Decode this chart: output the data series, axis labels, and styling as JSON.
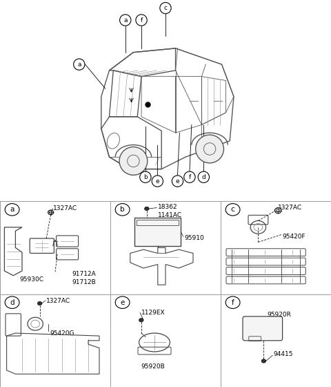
{
  "bg_color": "#ffffff",
  "line_color": "#444444",
  "light_color": "#888888",
  "panel_border_color": "#999999",
  "panels": {
    "a": {
      "label": "a",
      "parts": [
        "1327AC",
        "95930C",
        "91712A\n91712B"
      ]
    },
    "b": {
      "label": "b",
      "parts": [
        "18362\n1141AC",
        "95910"
      ]
    },
    "c": {
      "label": "c",
      "parts": [
        "1327AC",
        "95420F"
      ]
    },
    "d": {
      "label": "d",
      "parts": [
        "1327AC",
        "95420G"
      ]
    },
    "e": {
      "label": "e",
      "parts": [
        "1129EX",
        "95920B"
      ]
    },
    "f": {
      "label": "f",
      "parts": [
        "95920R",
        "94415"
      ]
    }
  }
}
